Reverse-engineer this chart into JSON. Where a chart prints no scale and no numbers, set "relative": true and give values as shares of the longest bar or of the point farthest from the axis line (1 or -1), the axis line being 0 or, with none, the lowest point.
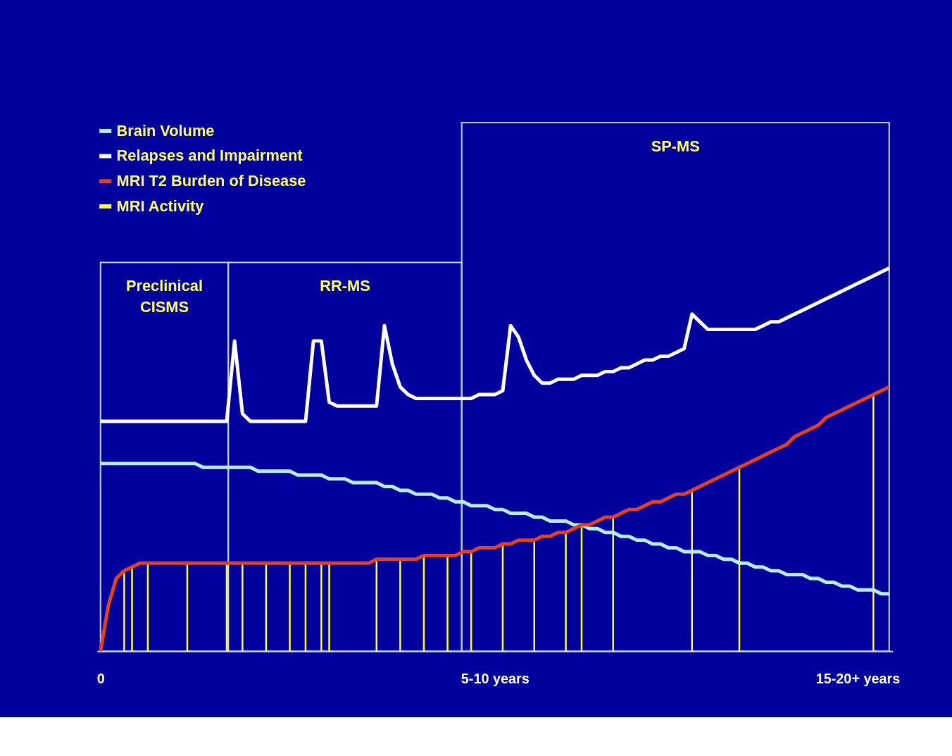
{
  "chart_data": {
    "type": "line",
    "relative": true,
    "legend": "top left",
    "grid": false,
    "annotations": [
      "Preclinical CISMS",
      "RR-MS",
      "SP-MS"
    ],
    "categories": [
      "0",
      null,
      null,
      null,
      null,
      null,
      null,
      null,
      null,
      null,
      null,
      null,
      null,
      null,
      null,
      null,
      null,
      null,
      null,
      null,
      null,
      null,
      null,
      null,
      null,
      null,
      null,
      null,
      null,
      null,
      null,
      null,
      null,
      null,
      null,
      null,
      null,
      null,
      null,
      null,
      null,
      null,
      null,
      null,
      null,
      null,
      null,
      null,
      null,
      null,
      "5-10 years",
      null,
      null,
      null,
      null,
      null,
      null,
      null,
      null,
      null,
      null,
      null,
      null,
      null,
      null,
      null,
      null,
      null,
      null,
      null,
      null,
      null,
      null,
      null,
      null,
      null,
      null,
      null,
      null,
      null,
      null,
      null,
      null,
      null,
      null,
      null,
      null,
      null,
      null,
      null,
      null,
      null,
      null,
      null,
      null,
      null,
      "15-20+ years",
      null,
      null,
      null,
      null
    ],
    "series": [
      {
        "name": "Brain Volume",
        "color": "#b4f0f0",
        "values": [
          0.49,
          0.49,
          0.49,
          0.49,
          0.49,
          0.49,
          0.49,
          0.49,
          0.49,
          0.49,
          0.49,
          0.49,
          0.49,
          0.48,
          0.48,
          0.48,
          0.48,
          0.48,
          0.48,
          0.48,
          0.47,
          0.47,
          0.47,
          0.47,
          0.47,
          0.46,
          0.46,
          0.46,
          0.46,
          0.45,
          0.45,
          0.45,
          0.44,
          0.44,
          0.44,
          0.44,
          0.43,
          0.43,
          0.42,
          0.42,
          0.41,
          0.41,
          0.41,
          0.4,
          0.4,
          0.39,
          0.39,
          0.38,
          0.38,
          0.38,
          0.37,
          0.37,
          0.36,
          0.36,
          0.36,
          0.35,
          0.35,
          0.34,
          0.34,
          0.34,
          0.33,
          0.33,
          0.32,
          0.32,
          0.31,
          0.31,
          0.3,
          0.3,
          0.29,
          0.29,
          0.28,
          0.28,
          0.27,
          0.27,
          0.26,
          0.26,
          0.26,
          0.25,
          0.25,
          0.24,
          0.24,
          0.23,
          0.23,
          0.22,
          0.22,
          0.21,
          0.21,
          0.2,
          0.2,
          0.2,
          0.19,
          0.19,
          0.18,
          0.18,
          0.17,
          0.17,
          0.16,
          0.16,
          0.16,
          0.15,
          0.15
        ]
      },
      {
        "name": "Relapses and Impairment",
        "color": "#ffffff",
        "values": [
          0.6,
          0.6,
          0.6,
          0.6,
          0.6,
          0.6,
          0.6,
          0.6,
          0.6,
          0.6,
          0.6,
          0.6,
          0.6,
          0.6,
          0.6,
          0.6,
          0.6,
          0.81,
          0.62,
          0.6,
          0.6,
          0.6,
          0.6,
          0.6,
          0.6,
          0.6,
          0.6,
          0.81,
          0.81,
          0.65,
          0.64,
          0.64,
          0.64,
          0.64,
          0.64,
          0.64,
          0.85,
          0.75,
          0.69,
          0.67,
          0.66,
          0.66,
          0.66,
          0.66,
          0.66,
          0.66,
          0.66,
          0.66,
          0.67,
          0.67,
          0.67,
          0.68,
          0.85,
          0.82,
          0.76,
          0.72,
          0.7,
          0.7,
          0.71,
          0.71,
          0.71,
          0.72,
          0.72,
          0.72,
          0.73,
          0.73,
          0.74,
          0.74,
          0.75,
          0.76,
          0.76,
          0.77,
          0.77,
          0.78,
          0.79,
          0.88,
          0.86,
          0.84,
          0.84,
          0.84,
          0.84,
          0.84,
          0.84,
          0.84,
          0.85,
          0.86,
          0.86,
          0.87,
          0.88,
          0.89,
          0.9,
          0.91,
          0.92,
          0.93,
          0.94,
          0.95,
          0.96,
          0.97,
          0.98,
          0.99,
          1.0
        ]
      },
      {
        "name": "MRI T2 Burden of Disease",
        "color": "#e8401c",
        "values": [
          0,
          0.12,
          0.19,
          0.21,
          0.22,
          0.23,
          0.23,
          0.23,
          0.23,
          0.23,
          0.23,
          0.23,
          0.23,
          0.23,
          0.23,
          0.23,
          0.23,
          0.23,
          0.23,
          0.23,
          0.23,
          0.23,
          0.23,
          0.23,
          0.23,
          0.23,
          0.23,
          0.23,
          0.23,
          0.23,
          0.23,
          0.23,
          0.23,
          0.23,
          0.23,
          0.24,
          0.24,
          0.24,
          0.24,
          0.24,
          0.24,
          0.25,
          0.25,
          0.25,
          0.25,
          0.25,
          0.26,
          0.26,
          0.27,
          0.27,
          0.27,
          0.28,
          0.28,
          0.29,
          0.29,
          0.29,
          0.3,
          0.3,
          0.31,
          0.31,
          0.32,
          0.33,
          0.33,
          0.34,
          0.35,
          0.35,
          0.36,
          0.37,
          0.37,
          0.38,
          0.39,
          0.39,
          0.4,
          0.41,
          0.41,
          0.42,
          0.43,
          0.44,
          0.45,
          0.46,
          0.47,
          0.48,
          0.49,
          0.5,
          0.51,
          0.52,
          0.53,
          0.54,
          0.56,
          0.57,
          0.58,
          0.59,
          0.61,
          0.62,
          0.63,
          0.64,
          0.65,
          0.66,
          0.67,
          0.68,
          0.69
        ]
      },
      {
        "name": "MRI Activity",
        "type": "bar",
        "color": "#ffff33",
        "values": [
          null,
          null,
          null,
          0.21,
          0.22,
          null,
          0.23,
          null,
          null,
          null,
          null,
          0.23,
          null,
          null,
          null,
          null,
          0.23,
          null,
          0.23,
          null,
          null,
          0.23,
          null,
          null,
          0.23,
          null,
          0.23,
          null,
          0.23,
          0.23,
          null,
          null,
          null,
          null,
          null,
          0.24,
          null,
          null,
          0.24,
          null,
          null,
          0.25,
          null,
          null,
          0.25,
          null,
          null,
          0.26,
          null,
          null,
          null,
          0.28,
          null,
          null,
          null,
          0.29,
          null,
          null,
          null,
          0.31,
          null,
          0.33,
          null,
          null,
          null,
          0.35,
          null,
          null,
          null,
          null,
          null,
          null,
          null,
          null,
          null,
          0.42,
          null,
          null,
          null,
          null,
          null,
          0.48,
          null,
          null,
          null,
          null,
          null,
          null,
          null,
          null,
          null,
          null,
          null,
          null,
          null,
          null,
          null,
          null,
          0.67,
          null,
          null
        ]
      }
    ]
  }
}
